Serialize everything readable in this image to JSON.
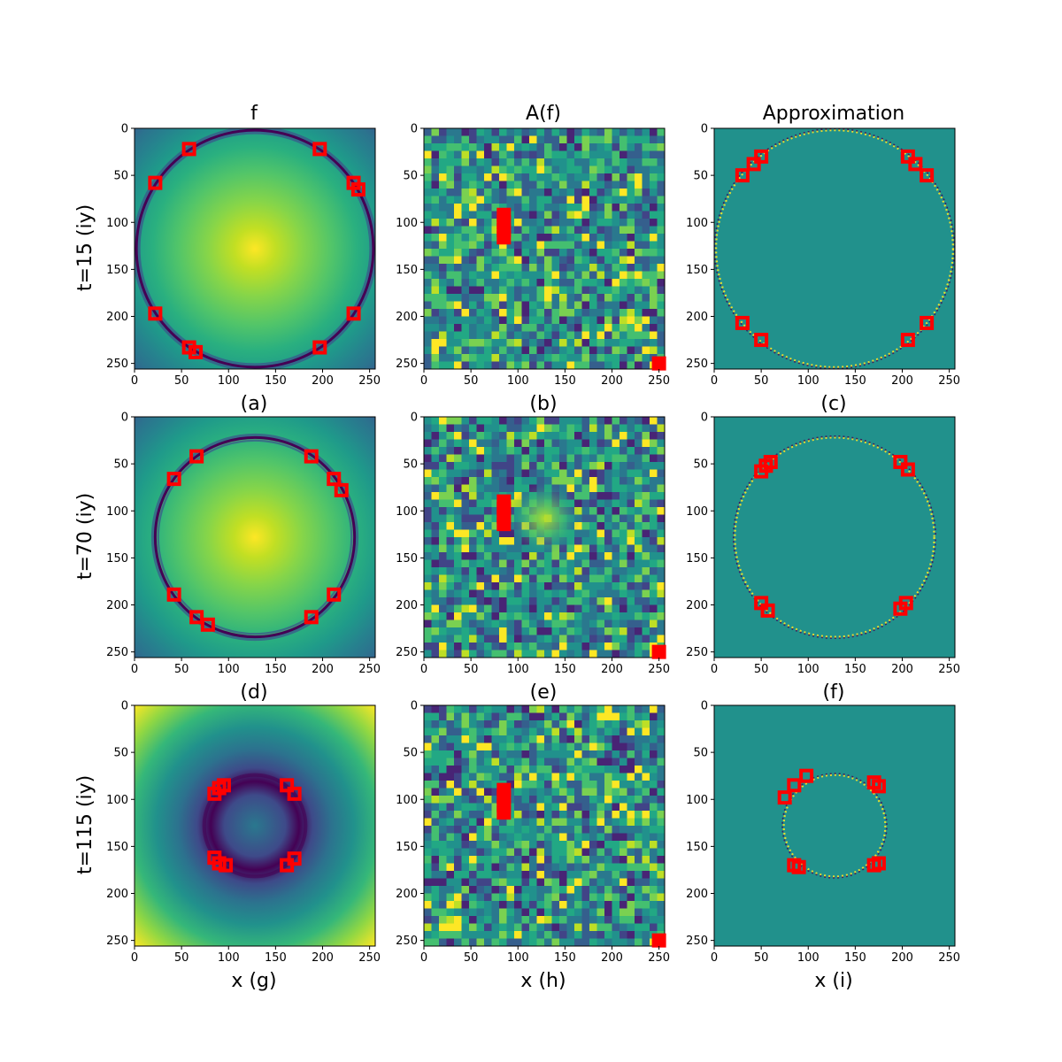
{
  "chart_data": {
    "type": "heatmap",
    "title": "",
    "column_titles": [
      "f",
      "A(f)",
      "Approximation"
    ],
    "row_labels": [
      "t=15 (iy)",
      "t=70 (iy)",
      "t=115 (iy)"
    ],
    "panel_labels": [
      [
        "(a)",
        "(b)",
        "(c)"
      ],
      [
        "(d)",
        "(e)",
        "(f)"
      ],
      [
        "(g)",
        "(h)",
        "(i)"
      ]
    ],
    "xlabel": "x",
    "x_ticks": [
      0,
      50,
      100,
      150,
      200,
      250
    ],
    "y_ticks": [
      0,
      50,
      100,
      150,
      200,
      250
    ],
    "xlim": [
      0,
      256
    ],
    "ylim": [
      256,
      0
    ],
    "colormap": "viridis",
    "marker_color": "#ff0000",
    "grid": false,
    "panels": [
      {
        "row": 0,
        "col": 0,
        "kind": "field",
        "ring_radius": 126,
        "markers": [
          [
            58,
            22
          ],
          [
            197,
            22
          ],
          [
            22,
            58
          ],
          [
            233,
            58
          ],
          [
            238,
            65
          ],
          [
            22,
            197
          ],
          [
            233,
            197
          ],
          [
            58,
            233
          ],
          [
            197,
            233
          ],
          [
            65,
            238
          ]
        ]
      },
      {
        "row": 0,
        "col": 1,
        "kind": "coeffs",
        "seed": 11,
        "markers": [
          [
            85,
            92
          ],
          [
            85,
            100
          ],
          [
            85,
            108
          ],
          [
            85,
            116
          ],
          [
            250,
            250
          ]
        ]
      },
      {
        "row": 0,
        "col": 2,
        "kind": "approx",
        "ring_radius": 126,
        "markers": [
          [
            30,
            50
          ],
          [
            42,
            38
          ],
          [
            50,
            30
          ],
          [
            206,
            30
          ],
          [
            214,
            38
          ],
          [
            226,
            50
          ],
          [
            30,
            207
          ],
          [
            50,
            225
          ],
          [
            206,
            225
          ],
          [
            226,
            207
          ]
        ]
      },
      {
        "row": 1,
        "col": 0,
        "kind": "field",
        "ring_radius": 106,
        "markers": [
          [
            66,
            42
          ],
          [
            188,
            42
          ],
          [
            42,
            66
          ],
          [
            212,
            66
          ],
          [
            220,
            78
          ],
          [
            42,
            189
          ],
          [
            212,
            189
          ],
          [
            66,
            213
          ],
          [
            188,
            213
          ],
          [
            78,
            221
          ]
        ]
      },
      {
        "row": 1,
        "col": 1,
        "kind": "coeffs",
        "seed": 27,
        "center_blob": true,
        "markers": [
          [
            85,
            90
          ],
          [
            85,
            98
          ],
          [
            85,
            106
          ],
          [
            85,
            114
          ],
          [
            250,
            250
          ]
        ]
      },
      {
        "row": 1,
        "col": 2,
        "kind": "approx",
        "ring_radius": 106,
        "markers": [
          [
            50,
            58
          ],
          [
            55,
            52
          ],
          [
            60,
            48
          ],
          [
            198,
            48
          ],
          [
            206,
            56
          ],
          [
            50,
            198
          ],
          [
            57,
            206
          ],
          [
            198,
            204
          ],
          [
            204,
            198
          ]
        ]
      },
      {
        "row": 2,
        "col": 0,
        "kind": "field",
        "ring_radius": 54,
        "markers": [
          [
            85,
            94
          ],
          [
            90,
            88
          ],
          [
            95,
            85
          ],
          [
            162,
            85
          ],
          [
            170,
            94
          ],
          [
            85,
            162
          ],
          [
            90,
            168
          ],
          [
            97,
            170
          ],
          [
            162,
            170
          ],
          [
            170,
            163
          ]
        ]
      },
      {
        "row": 2,
        "col": 1,
        "kind": "coeffs",
        "seed": 43,
        "markers": [
          [
            85,
            90
          ],
          [
            85,
            98
          ],
          [
            85,
            106
          ],
          [
            85,
            114
          ],
          [
            250,
            250
          ]
        ]
      },
      {
        "row": 2,
        "col": 2,
        "kind": "approx",
        "ring_radius": 54,
        "markers": [
          [
            75,
            98
          ],
          [
            85,
            85
          ],
          [
            98,
            75
          ],
          [
            170,
            82
          ],
          [
            175,
            86
          ],
          [
            85,
            170
          ],
          [
            90,
            172
          ],
          [
            170,
            170
          ],
          [
            175,
            168
          ]
        ]
      }
    ]
  }
}
